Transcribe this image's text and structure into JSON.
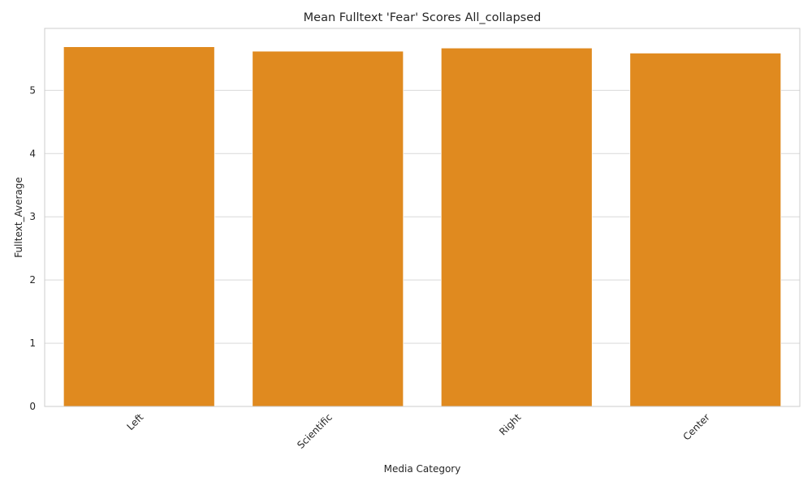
{
  "chart_data": {
    "type": "bar",
    "title": "Mean Fulltext 'Fear' Scores All_collapsed",
    "xlabel": "Media Category",
    "ylabel": "Fulltext_Average",
    "categories": [
      "Left",
      "Scientific",
      "Right",
      "Center"
    ],
    "values": [
      5.69,
      5.62,
      5.67,
      5.59
    ],
    "ylim": [
      0,
      5.98
    ],
    "yticks": [
      0,
      1,
      2,
      3,
      4,
      5
    ],
    "grid": true,
    "grid_axis": "y",
    "legend": "none",
    "x_tick_rotation": 45,
    "colors": {
      "bar": "#e08a1f",
      "grid": "#d9d9d9",
      "spine": "#cccccc",
      "text": "#262626"
    }
  }
}
